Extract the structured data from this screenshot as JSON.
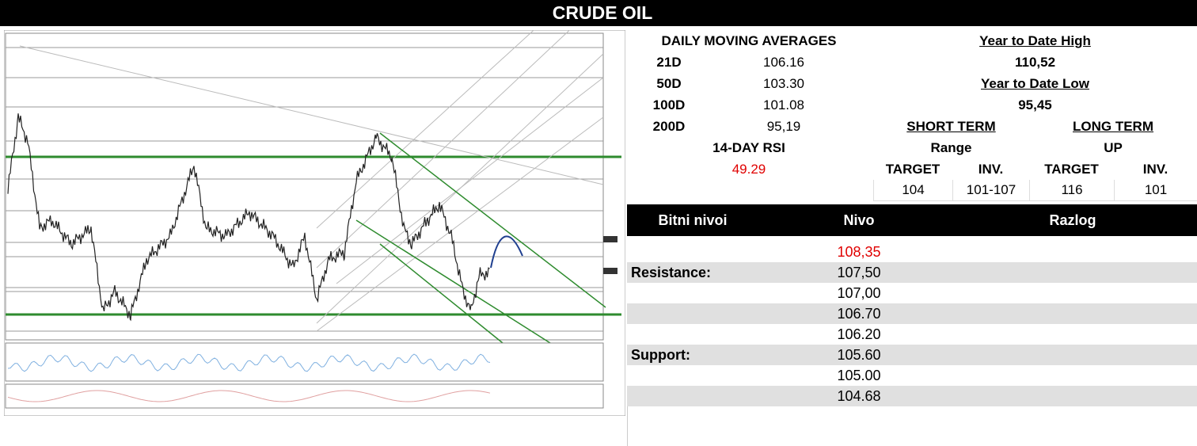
{
  "title": "CRUDE OIL",
  "moving_averages": {
    "header": "DAILY MOVING AVERAGES",
    "rows": [
      [
        "21D",
        "106.16"
      ],
      [
        "50D",
        "103.30"
      ],
      [
        "100D",
        "101.08"
      ],
      [
        "200D",
        "95,19"
      ]
    ],
    "rsi_label": "14-DAY RSI",
    "rsi_value": "49.29"
  },
  "ytd": {
    "high_label": "Year to Date High",
    "high": "110,52",
    "low_label": "Year to Date Low",
    "low": "95,45"
  },
  "terms": {
    "short_label": "SHORT TERM",
    "long_label": "LONG TERM",
    "short_view": "Range",
    "long_view": "UP",
    "columns": [
      "TARGET",
      "INV.",
      "TARGET",
      "INV."
    ],
    "values": [
      "104",
      "101-107",
      "116",
      "101"
    ]
  },
  "levels": {
    "headers": [
      "Bitni nivoi",
      "Nivo",
      "Razlog"
    ],
    "rows": [
      {
        "level": "108,35"
      },
      {
        "label": "Resistance:",
        "level": "107,50"
      },
      {
        "level": "107,00"
      },
      {
        "level": "106.70"
      },
      {
        "level": "106.20"
      },
      {
        "label": "Support:",
        "level": "105.60"
      },
      {
        "level": "105.00"
      },
      {
        "level": "104.68"
      }
    ]
  }
}
